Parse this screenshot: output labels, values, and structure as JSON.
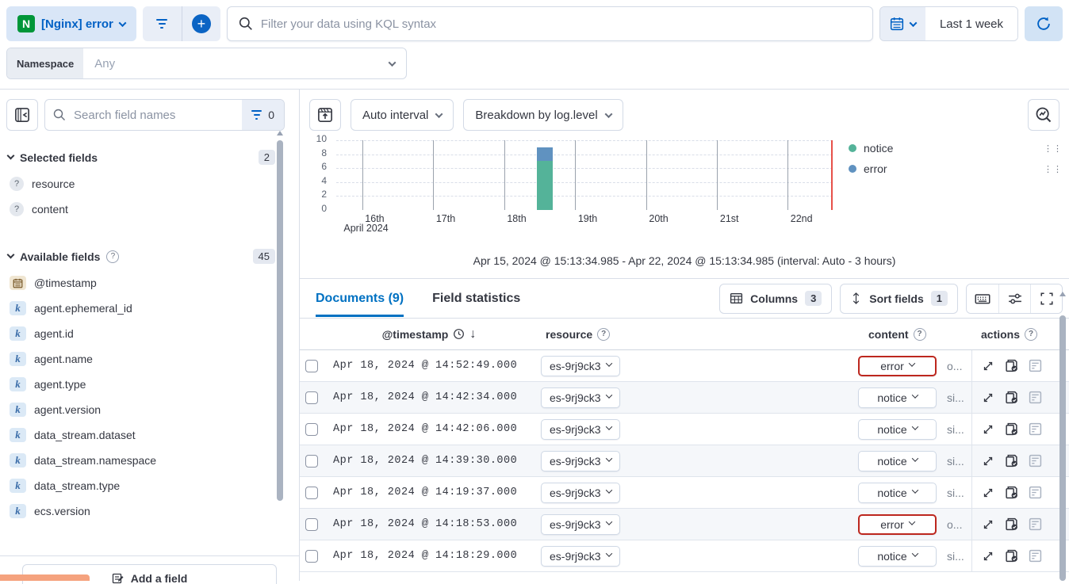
{
  "top_bar": {
    "data_view_label": "[Nginx] error",
    "nginx_logo_letter": "N",
    "kql_placeholder": "Filter your data using KQL syntax",
    "time_range_label": "Last 1 week"
  },
  "namespace_bar": {
    "label": "Namespace",
    "value": "Any"
  },
  "sidebar": {
    "search_placeholder": "Search field names",
    "field_filter_count": "0",
    "selected_fields": {
      "label": "Selected fields",
      "count": "2",
      "items": [
        {
          "name": "resource",
          "type": "unknown"
        },
        {
          "name": "content",
          "type": "unknown"
        }
      ]
    },
    "available_fields": {
      "label": "Available fields",
      "count": "45",
      "items": [
        {
          "name": "@timestamp",
          "type": "date"
        },
        {
          "name": "agent.ephemeral_id",
          "type": "keyword"
        },
        {
          "name": "agent.id",
          "type": "keyword"
        },
        {
          "name": "agent.name",
          "type": "keyword"
        },
        {
          "name": "agent.type",
          "type": "keyword"
        },
        {
          "name": "agent.version",
          "type": "keyword"
        },
        {
          "name": "data_stream.dataset",
          "type": "keyword"
        },
        {
          "name": "data_stream.namespace",
          "type": "keyword"
        },
        {
          "name": "data_stream.type",
          "type": "keyword"
        },
        {
          "name": "ecs.version",
          "type": "keyword"
        }
      ]
    },
    "keyword_icon_letter": "k",
    "add_field_label": "Add a field"
  },
  "chart": {
    "toolbar": {
      "interval": "Auto interval",
      "breakdown": "Breakdown by log.level"
    },
    "caption": "Apr 15, 2024 @ 15:13:34.985 - Apr 22, 2024 @ 15:13:34.985 (interval: Auto - 3 hours)"
  },
  "chart_data": {
    "type": "bar",
    "stacked": true,
    "title": "",
    "xlabel": "April 2024",
    "ylabel": "",
    "ylim": [
      0,
      10
    ],
    "y_ticks": [
      0,
      2,
      4,
      6,
      8,
      10
    ],
    "x_range": [
      "Apr 15, 2024 @ 15:13:34.985",
      "Apr 22, 2024 @ 15:13:34.985"
    ],
    "interval": "3 hours",
    "x_ticks": [
      {
        "label": "16th",
        "pos": 5.2
      },
      {
        "label": "17th",
        "pos": 19.5
      },
      {
        "label": "18th",
        "pos": 33.8
      },
      {
        "label": "19th",
        "pos": 48.1
      },
      {
        "label": "20th",
        "pos": 62.4
      },
      {
        "label": "21st",
        "pos": 76.7
      },
      {
        "label": "22nd",
        "pos": 90.9
      }
    ],
    "month_label": "April 2024",
    "bars": [
      {
        "x_label": "Apr 18, 2024 ~12:00",
        "pos": 42,
        "segments": [
          {
            "name": "notice",
            "value": 7,
            "color": "#54b399"
          },
          {
            "name": "error",
            "value": 2,
            "color": "#6092c0"
          }
        ]
      }
    ],
    "now_marker": {
      "pos": 100,
      "color": "#e7514a"
    },
    "legend": {
      "position": "right",
      "items": [
        {
          "label": "notice",
          "color": "#54b399"
        },
        {
          "label": "error",
          "color": "#6092c0"
        }
      ]
    },
    "grid": "dashed-horizontal"
  },
  "results": {
    "tabs": [
      {
        "label": "Documents (9)",
        "active": true
      },
      {
        "label": "Field statistics",
        "active": false
      }
    ],
    "controls": {
      "columns_label": "Columns",
      "columns_count": "3",
      "sort_label": "Sort fields",
      "sort_count": "1"
    }
  },
  "table": {
    "headers": {
      "timestamp": "@timestamp",
      "resource": "resource",
      "content": "content",
      "actions": "actions"
    },
    "rows": [
      {
        "timestamp": "Apr 18, 2024 @ 14:52:49.000",
        "resource": "es-9rj9ck3",
        "level": "error",
        "snippet": "o..."
      },
      {
        "timestamp": "Apr 18, 2024 @ 14:42:34.000",
        "resource": "es-9rj9ck3",
        "level": "notice",
        "snippet": "si..."
      },
      {
        "timestamp": "Apr 18, 2024 @ 14:42:06.000",
        "resource": "es-9rj9ck3",
        "level": "notice",
        "snippet": "si..."
      },
      {
        "timestamp": "Apr 18, 2024 @ 14:39:30.000",
        "resource": "es-9rj9ck3",
        "level": "notice",
        "snippet": "si..."
      },
      {
        "timestamp": "Apr 18, 2024 @ 14:19:37.000",
        "resource": "es-9rj9ck3",
        "level": "notice",
        "snippet": "si..."
      },
      {
        "timestamp": "Apr 18, 2024 @ 14:18:53.000",
        "resource": "es-9rj9ck3",
        "level": "error",
        "snippet": "o..."
      },
      {
        "timestamp": "Apr 18, 2024 @ 14:18:29.000",
        "resource": "es-9rj9ck3",
        "level": "notice",
        "snippet": "si..."
      }
    ],
    "action_icons": [
      "expand-document-icon",
      "copy-document-check-icon",
      "view-surrounding-documents-icon"
    ]
  },
  "colors": {
    "primary_blue": "#0061c5",
    "link_blue": "#0071c2",
    "light_blue_bg": "#d9e6f7",
    "notice_green": "#54b399",
    "error_bar_blue": "#6092c0",
    "now_line_red": "#e7514a",
    "error_badge_border": "#bd271e",
    "row_alt_bg": "#f5f7fa",
    "border_gray": "#d3dae6"
  }
}
